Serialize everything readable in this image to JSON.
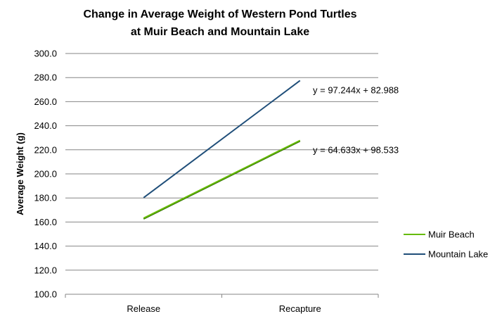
{
  "chart_data": {
    "type": "line",
    "title": "Change in Average Weight of Western Pond Turtles",
    "subtitle": "at Muir Beach and Mountain Lake",
    "xlabel": "",
    "ylabel": "Average Weight (g)",
    "categories": [
      "Release",
      "Recapture"
    ],
    "ylim": [
      100,
      300
    ],
    "yticks": [
      "100.0",
      "120.0",
      "140.0",
      "160.0",
      "180.0",
      "200.0",
      "220.0",
      "240.0",
      "260.0",
      "280.0",
      "300.0"
    ],
    "grid": true,
    "legend_position": "right",
    "series": [
      {
        "name": "Muir Beach",
        "values": [
          163.2,
          227.8
        ],
        "color": "#66bb00",
        "shadow_color": "#2e6b00",
        "trendline": "y = 64.633x + 98.533"
      },
      {
        "name": "Mountain Lake",
        "values": [
          180.2,
          277.5
        ],
        "color": "#1f4e79",
        "shadow_color": "#1f4e79",
        "trendline": "y = 97.244x + 82.988"
      }
    ]
  }
}
